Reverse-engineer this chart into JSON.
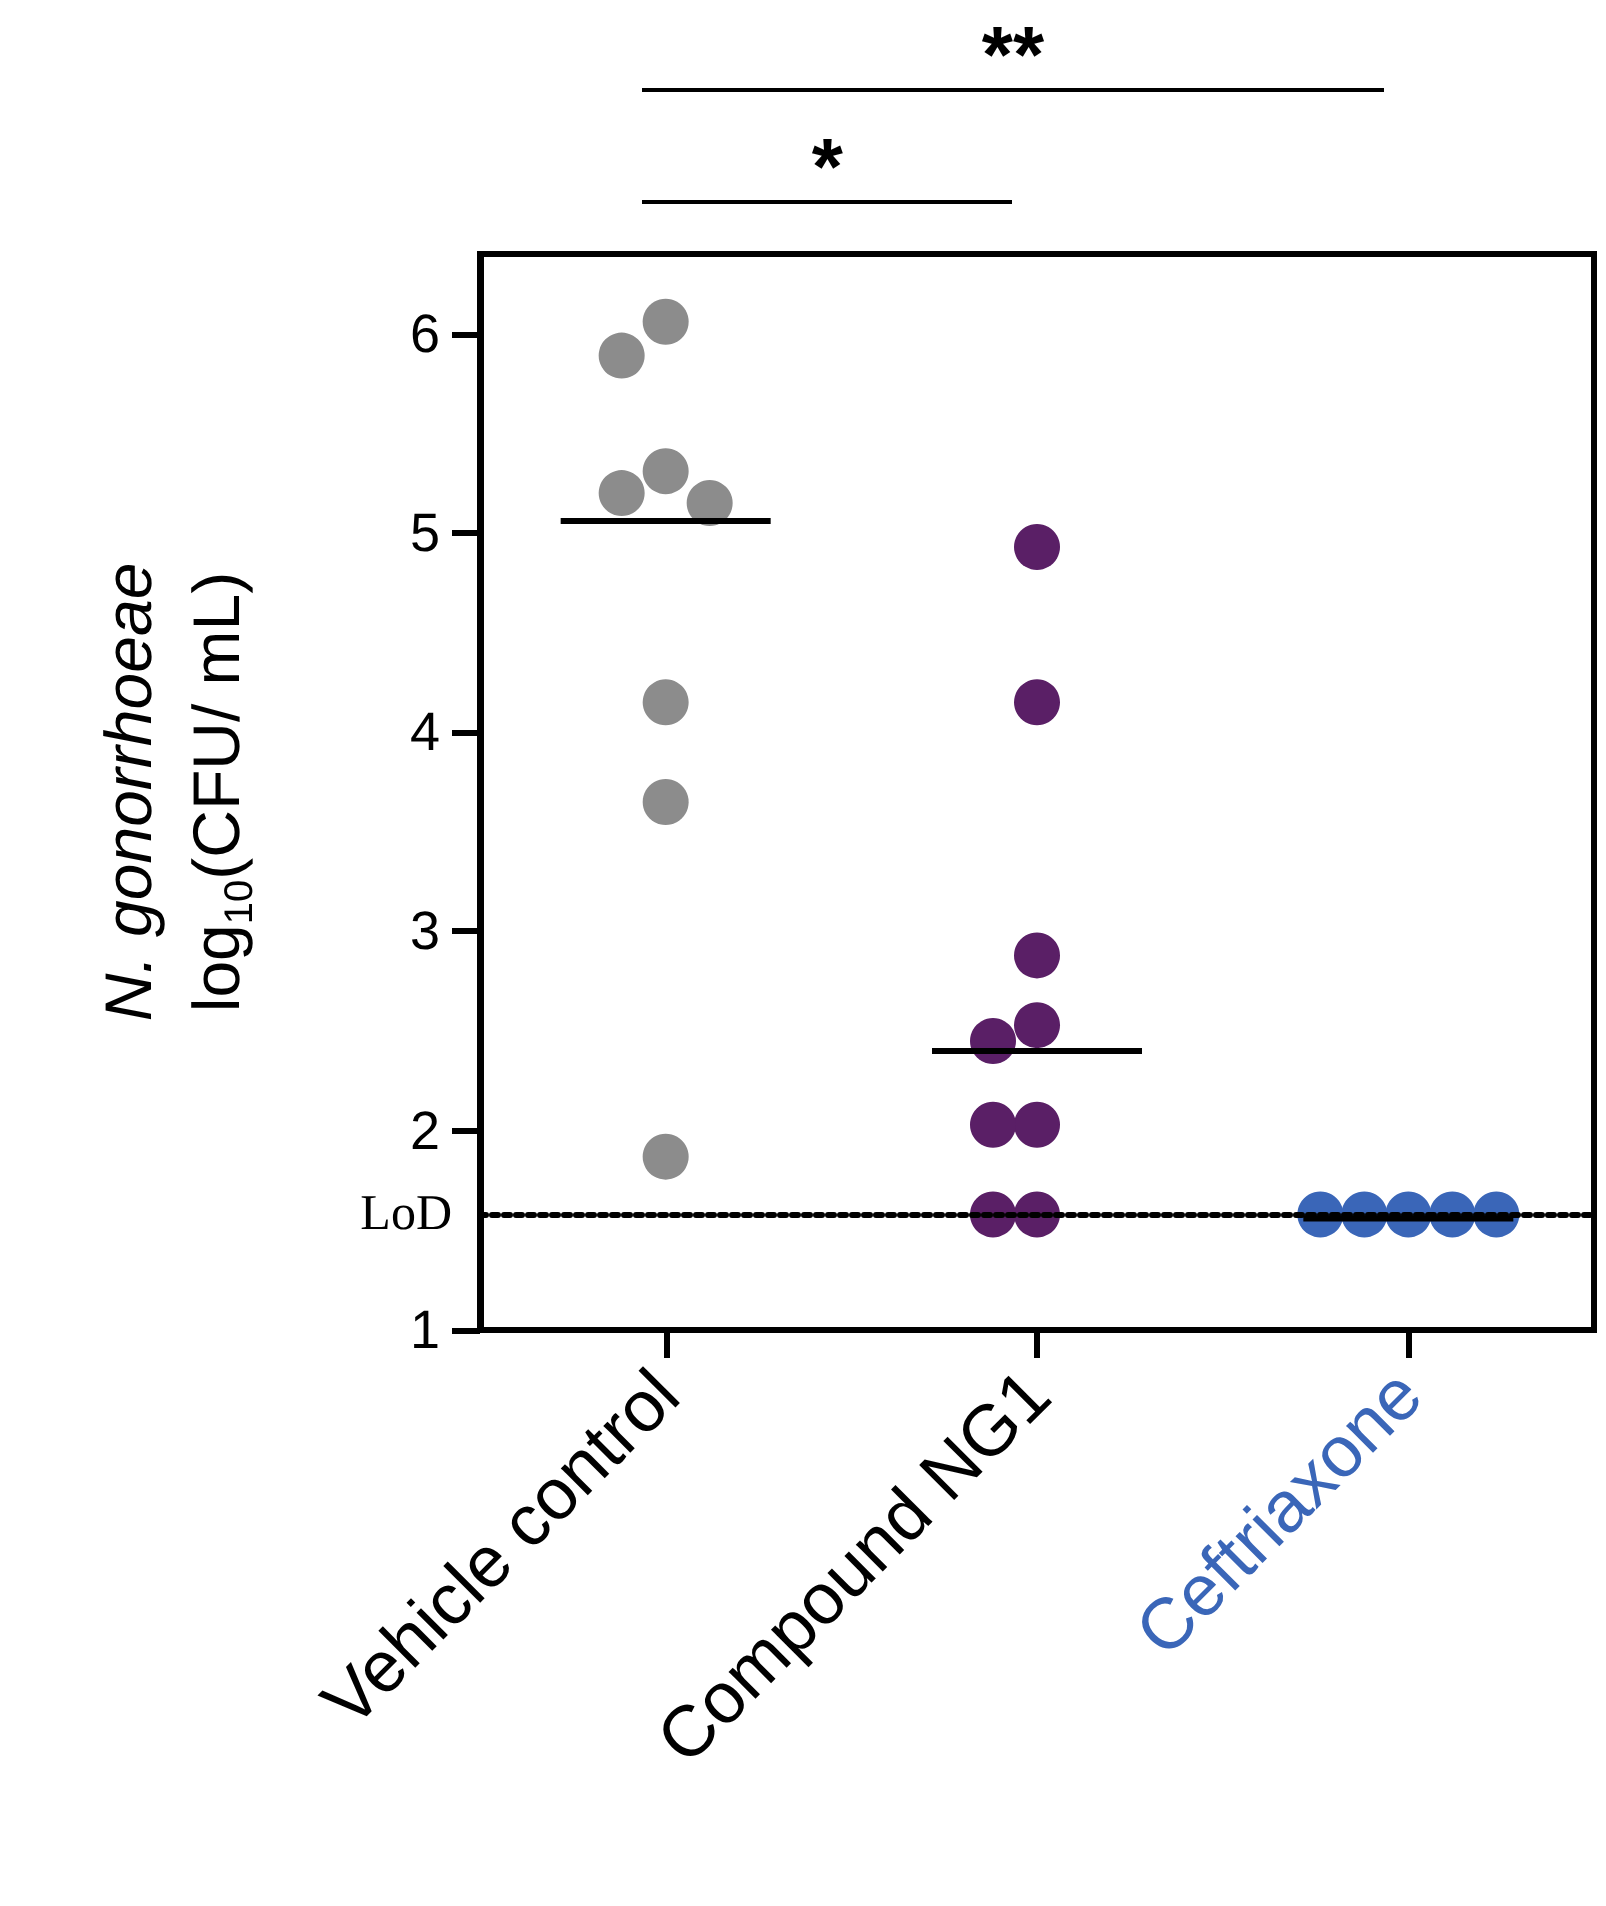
{
  "chart_data": {
    "type": "scatter",
    "ylabel": "N. gonorrhoeae\nlog$_{10}$(CFU/ mL)",
    "categories": [
      "Vehicle control",
      "Compound NG1",
      "Ceftriaxone"
    ],
    "series": [
      {
        "color": "#8c8c8c",
        "x": [
          "Vehicle control",
          "Vehicle control",
          "Vehicle control",
          "Vehicle control",
          "Vehicle control",
          "Vehicle control",
          "Vehicle control",
          "Vehicle control"
        ],
        "values": [
          6.06,
          5.89,
          5.31,
          5.2,
          5.15,
          4.15,
          3.65,
          1.87
        ]
      },
      {
        "color": "#5a1f66",
        "x": [
          "Compound NG1",
          "Compound NG1",
          "Compound NG1",
          "Compound NG1",
          "Compound NG1",
          "Compound NG1",
          "Compound NG1",
          "Compound NG1",
          "Compound NG1"
        ],
        "values": [
          4.93,
          4.15,
          2.88,
          2.53,
          2.45,
          2.03,
          2.03,
          1.58,
          1.58
        ]
      },
      {
        "color": "#3a66b8",
        "x": [
          "Ceftriaxone",
          "Ceftriaxone",
          "Ceftriaxone",
          "Ceftriaxone",
          "Ceftriaxone"
        ],
        "values": [
          1.58,
          1.58,
          1.58,
          1.58,
          1.58
        ]
      },
      {
        "type": "box",
        "color": "#000000",
        "boxes": [
          {
            "low": 5.06,
            "q1": 5.06,
            "median": 5.06,
            "q3": 5.06,
            "high": 5.06
          },
          {
            "low": 2.4,
            "q1": 2.4,
            "median": 2.4,
            "q3": 2.4,
            "high": 2.4
          },
          {
            "low": 1.56,
            "q1": 1.56,
            "median": 1.56,
            "q3": 1.56,
            "high": 1.56
          }
        ]
      }
    ],
    "ylim": [
      1,
      6.4
    ],
    "yticks": [
      1,
      2,
      3,
      4,
      5,
      6
    ],
    "ref_lines": [
      {
        "axis": "y",
        "value": 1.58,
        "label": "LoD",
        "color": "#000000",
        "line_style": "dotted"
      }
    ],
    "annotations": [
      "*",
      "**"
    ],
    "marker": "circle",
    "grid": false
  }
}
